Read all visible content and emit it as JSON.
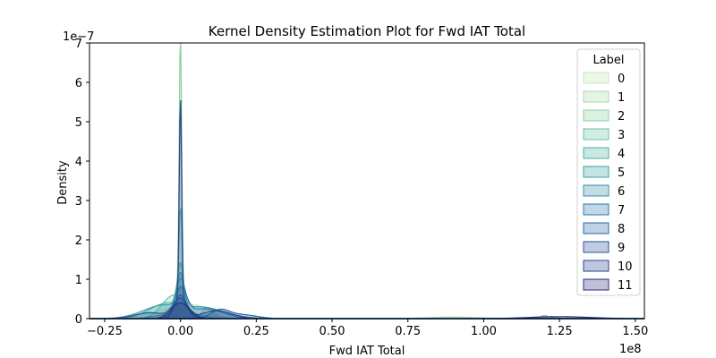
{
  "chart_data": {
    "type": "area",
    "title": "Kernel Density Estimation Plot for Fwd IAT Total",
    "xlabel": "Fwd IAT Total",
    "ylabel": "Density",
    "x_offset_label": "1e8",
    "y_offset_label": "1e−7",
    "xlim": [
      -0.3,
      1.53
    ],
    "ylim": [
      0,
      7.0
    ],
    "x_ticks": [
      -0.25,
      0.0,
      0.25,
      0.5,
      0.75,
      1.0,
      1.25,
      1.5
    ],
    "x_tick_labels": [
      "−0.25",
      "0.00",
      "0.25",
      "0.50",
      "0.75",
      "1.00",
      "1.25",
      "1.50"
    ],
    "y_ticks": [
      0,
      1,
      2,
      3,
      4,
      5,
      6,
      7
    ],
    "y_tick_labels": [
      "0",
      "1",
      "2",
      "3",
      "4",
      "5",
      "6",
      "7"
    ],
    "legend": {
      "title": "Label",
      "position": "top-right"
    },
    "series": [
      {
        "name": "0",
        "color": "#c7e9b4",
        "components": [
          [
            0.5,
            0.0,
            0.012
          ],
          [
            0.3,
            0.05,
            0.05
          ],
          [
            0.2,
            -0.05,
            0.06
          ]
        ]
      },
      {
        "name": "1",
        "color": "#a8dca4",
        "components": [
          [
            0.6,
            0.0,
            0.006
          ],
          [
            0.1,
            0.09,
            0.03
          ],
          [
            0.05,
            1.2,
            0.03
          ],
          [
            0.04,
            0.9,
            0.08
          ]
        ]
      },
      {
        "name": "2",
        "color": "#88d1a0",
        "components": [
          [
            6.7,
            0.0,
            0.004
          ],
          [
            0.8,
            0.0,
            0.02
          ],
          [
            0.25,
            0.09,
            0.02
          ],
          [
            0.08,
            1.2,
            0.015
          ]
        ]
      },
      {
        "name": "3",
        "color": "#69c2a2",
        "components": [
          [
            2.3,
            0.0,
            0.005
          ],
          [
            0.6,
            -0.02,
            0.04
          ]
        ]
      },
      {
        "name": "4",
        "color": "#4fb2a3",
        "components": [
          [
            1.1,
            0.0,
            0.01
          ],
          [
            0.4,
            -0.04,
            0.06
          ]
        ]
      },
      {
        "name": "5",
        "color": "#3ea0a6",
        "components": [
          [
            0.9,
            0.0,
            0.012
          ],
          [
            0.35,
            -0.05,
            0.07
          ]
        ]
      },
      {
        "name": "6",
        "color": "#348da8",
        "components": [
          [
            0.8,
            0.0,
            0.015
          ],
          [
            0.3,
            0.06,
            0.08
          ]
        ]
      },
      {
        "name": "7",
        "color": "#2f7aa8",
        "components": [
          [
            0.7,
            0.0,
            0.02
          ],
          [
            0.25,
            0.08,
            0.06
          ]
        ]
      },
      {
        "name": "8",
        "color": "#2c66a5",
        "components": [
          [
            0.6,
            0.0,
            0.02
          ],
          [
            0.2,
            0.13,
            0.03
          ],
          [
            0.1,
            0.2,
            0.05
          ]
        ]
      },
      {
        "name": "9",
        "color": "#2c539c",
        "components": [
          [
            0.5,
            0.0,
            0.025
          ],
          [
            0.15,
            -0.1,
            0.05
          ]
        ]
      },
      {
        "name": "10",
        "color": "#2c418e",
        "components": [
          [
            5.1,
            0.0,
            0.004
          ],
          [
            0.5,
            0.0,
            0.02
          ],
          [
            0.2,
            0.12,
            0.05
          ]
        ]
      },
      {
        "name": "11",
        "color": "#2b2f7f",
        "components": [
          [
            0.4,
            0.0,
            0.03
          ],
          [
            0.05,
            1.25,
            0.1
          ]
        ]
      }
    ]
  }
}
